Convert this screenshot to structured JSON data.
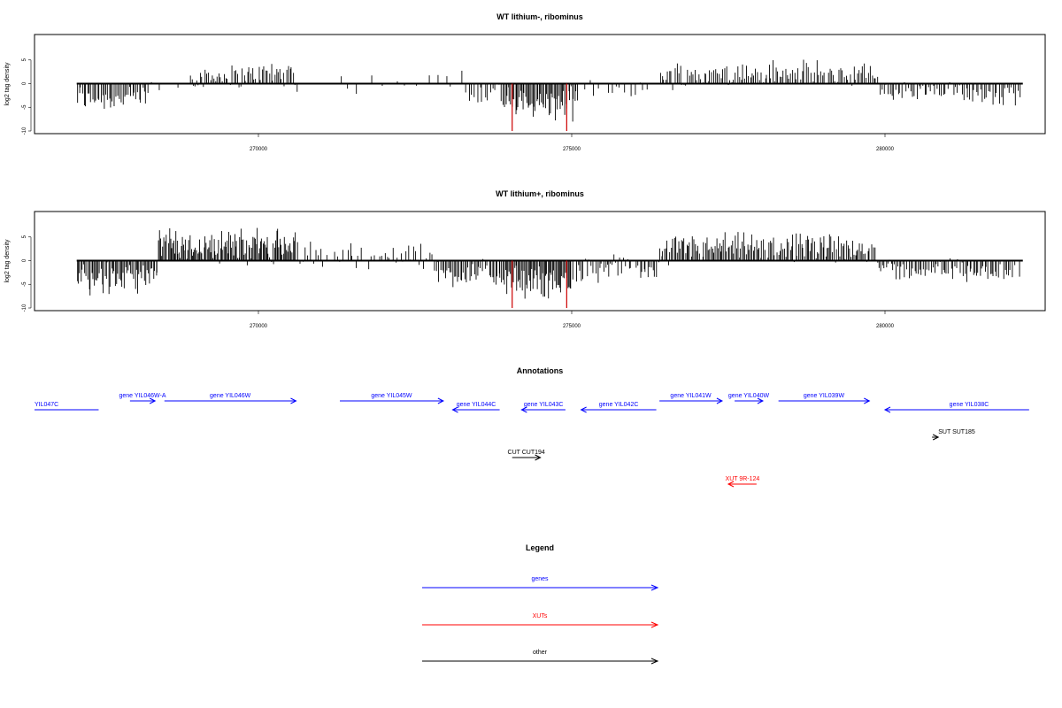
{
  "chart_data": [
    {
      "type": "bar",
      "title": "WT lithium-, ribominus",
      "ylabel": "log2 tag density",
      "xlabel": "",
      "x_range": [
        266000,
        282300
      ],
      "ylim": [
        -10,
        10
      ],
      "yticks": [
        -10,
        -5,
        0,
        5
      ],
      "xticks": [
        270000,
        275000,
        280000
      ],
      "grid": false,
      "bars": [
        {
          "from": 267100,
          "to": 268250,
          "mean": -3.0,
          "amp": 2.6,
          "density": 22
        },
        {
          "from": 268250,
          "to": 268900,
          "mean": -0.3,
          "amp": 1.5,
          "density": 5
        },
        {
          "from": 268900,
          "to": 270000,
          "mean": 1.6,
          "amp": 2.2,
          "density": 22
        },
        {
          "from": 270000,
          "to": 270600,
          "mean": 2.3,
          "amp": 2.6,
          "density": 22
        },
        {
          "from": 270600,
          "to": 272700,
          "mean": 0.2,
          "amp": 2.0,
          "density": 3
        },
        {
          "from": 272700,
          "to": 273300,
          "mean": 0.7,
          "amp": 3.0,
          "density": 5
        },
        {
          "from": 273300,
          "to": 273900,
          "mean": -1.8,
          "amp": 2.8,
          "density": 14
        },
        {
          "from": 273900,
          "to": 275100,
          "mean": -4.3,
          "amp": 2.8,
          "density": 30
        },
        {
          "from": 275100,
          "to": 276400,
          "mean": -0.9,
          "amp": 1.8,
          "density": 8
        },
        {
          "from": 276400,
          "to": 279900,
          "mean": 2.0,
          "amp": 2.6,
          "density": 20
        },
        {
          "from": 279900,
          "to": 282200,
          "mean": -2.0,
          "amp": 2.2,
          "density": 18
        }
      ],
      "red_bars": [
        {
          "x": 274050,
          "y": -10
        },
        {
          "x": 274920,
          "y": -10
        }
      ]
    },
    {
      "type": "bar",
      "title": "WT lithium+, ribominus",
      "ylabel": "log2 tag density",
      "xlabel": "",
      "x_range": [
        266000,
        282300
      ],
      "ylim": [
        -10,
        10
      ],
      "yticks": [
        -10,
        -5,
        0,
        5
      ],
      "xticks": [
        270000,
        275000,
        280000
      ],
      "grid": false,
      "bars": [
        {
          "from": 267100,
          "to": 268400,
          "mean": -3.6,
          "amp": 3.0,
          "density": 28
        },
        {
          "from": 268400,
          "to": 270600,
          "mean": 3.2,
          "amp": 3.2,
          "density": 34
        },
        {
          "from": 270600,
          "to": 272800,
          "mean": 1.0,
          "amp": 2.6,
          "density": 14
        },
        {
          "from": 272800,
          "to": 273900,
          "mean": -2.8,
          "amp": 2.8,
          "density": 24
        },
        {
          "from": 273900,
          "to": 275000,
          "mean": -4.5,
          "amp": 3.0,
          "density": 32
        },
        {
          "from": 275000,
          "to": 276400,
          "mean": -1.8,
          "amp": 2.4,
          "density": 20
        },
        {
          "from": 276400,
          "to": 279900,
          "mean": 2.6,
          "amp": 2.8,
          "density": 26
        },
        {
          "from": 279900,
          "to": 282200,
          "mean": -2.0,
          "amp": 2.2,
          "density": 22
        }
      ],
      "red_bars": [
        {
          "x": 274050,
          "y": -10
        },
        {
          "x": 274920,
          "y": -10
        }
      ]
    }
  ],
  "annotations": {
    "title": "Annotations",
    "items": [
      {
        "label": "YIL047C",
        "from": 266000,
        "to": 267450,
        "dir": "left",
        "color": "#0000ff",
        "row": 1
      },
      {
        "label": "gene YIL046W-A",
        "from": 267950,
        "to": 268350,
        "dir": "right",
        "color": "#0000ff",
        "row": 0
      },
      {
        "label": "gene YIL046W",
        "from": 268500,
        "to": 270600,
        "dir": "right",
        "color": "#0000ff",
        "row": 0
      },
      {
        "label": "gene YIL045W",
        "from": 271300,
        "to": 272950,
        "dir": "right",
        "color": "#0000ff",
        "row": 0
      },
      {
        "label": "gene YIL044C",
        "from": 273100,
        "to": 273850,
        "dir": "left",
        "color": "#0000ff",
        "row": 1
      },
      {
        "label": "gene YIL043C",
        "from": 274200,
        "to": 274900,
        "dir": "left",
        "color": "#0000ff",
        "row": 1
      },
      {
        "label": "gene YIL042C",
        "from": 275150,
        "to": 276350,
        "dir": "left",
        "color": "#0000ff",
        "row": 1
      },
      {
        "label": "gene YIL041W",
        "from": 276400,
        "to": 277400,
        "dir": "right",
        "color": "#0000ff",
        "row": 0
      },
      {
        "label": "gene YIL040W",
        "from": 277600,
        "to": 278050,
        "dir": "right",
        "color": "#0000ff",
        "row": 0
      },
      {
        "label": "gene YIL039W",
        "from": 278300,
        "to": 279750,
        "dir": "right",
        "color": "#0000ff",
        "row": 0
      },
      {
        "label": "gene YIL038C",
        "from": 280000,
        "to": 282300,
        "dir": "left",
        "color": "#0000ff",
        "row": 1
      },
      {
        "label": "CUT CUT194",
        "from": 274050,
        "to": 274500,
        "dir": "right",
        "color": "#000000",
        "row": 3
      },
      {
        "label": "SUT SUT185",
        "from": 280750,
        "to": 280850,
        "dir": "right",
        "color": "#000000",
        "row": 2
      },
      {
        "label": "XUT 9R-124",
        "from": 277500,
        "to": 277950,
        "dir": "left",
        "color": "#ff0000",
        "row": 4
      }
    ]
  },
  "legend": {
    "title": "Legend",
    "items": [
      {
        "label": "genes",
        "color": "#0000ff"
      },
      {
        "label": "XUTs",
        "color": "#ff0000"
      },
      {
        "label": "other",
        "color": "#000000"
      }
    ]
  }
}
